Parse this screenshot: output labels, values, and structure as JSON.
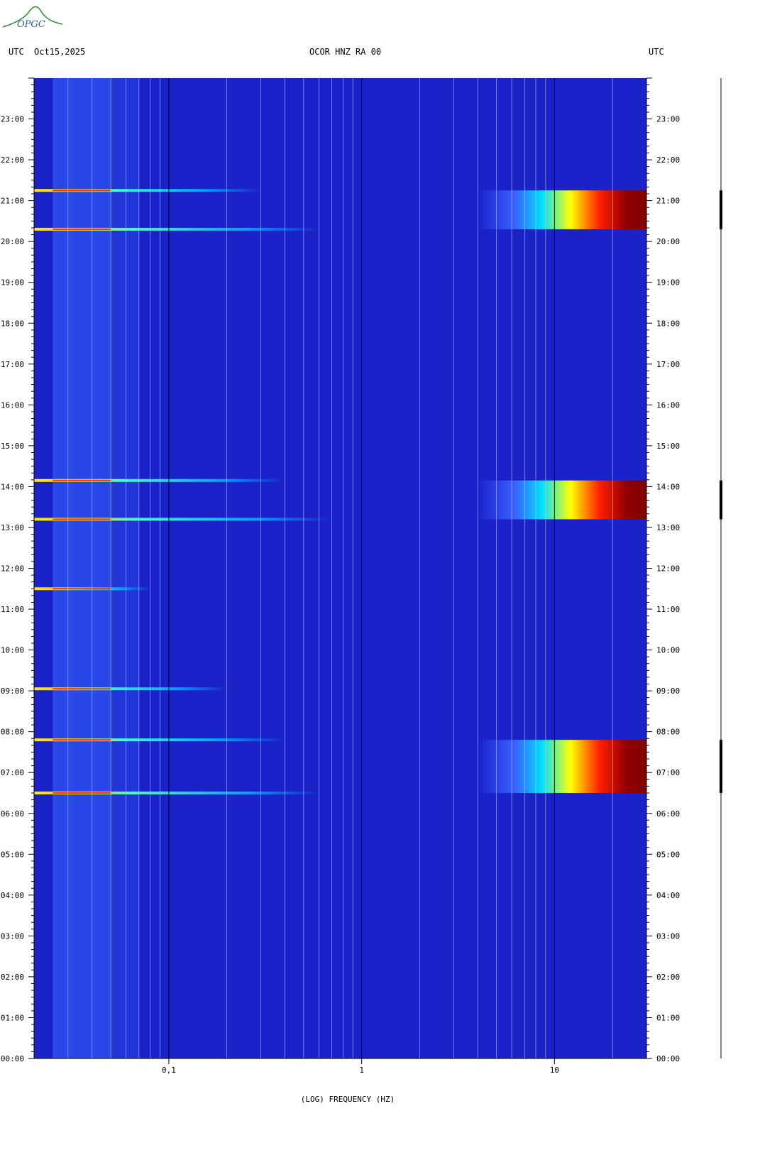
{
  "header": {
    "left_utc": "UTC",
    "date": "Oct15,2025",
    "station": "OCOR HNZ RA 00",
    "right_utc": "UTC"
  },
  "logo": {
    "text": "OPGC",
    "color": "#2a8a3a"
  },
  "chart_data": {
    "type": "heatmap",
    "title": "OCOR HNZ RA 00",
    "xlabel": "(LOG) FREQUENCY (HZ)",
    "ylabel": "",
    "x_scale": "log",
    "xlim": [
      0.02,
      30
    ],
    "x_tick_labels": [
      {
        "value": 0.1,
        "label": "0,1"
      },
      {
        "value": 1,
        "label": "1"
      },
      {
        "value": 10,
        "label": "10"
      }
    ],
    "x_gridlines": [
      0.03,
      0.04,
      0.05,
      0.06,
      0.07,
      0.08,
      0.09,
      0.1,
      0.2,
      0.3,
      0.4,
      0.5,
      0.6,
      0.7,
      0.8,
      0.9,
      1,
      2,
      3,
      4,
      5,
      6,
      7,
      8,
      9,
      10,
      20,
      30
    ],
    "ylim_hours": [
      0,
      24
    ],
    "y_tick_labels": [
      "00:00",
      "01:00",
      "02:00",
      "03:00",
      "04:00",
      "05:00",
      "06:00",
      "07:00",
      "08:00",
      "09:00",
      "10:00",
      "11:00",
      "12:00",
      "13:00",
      "14:00",
      "15:00",
      "16:00",
      "17:00",
      "18:00",
      "19:00",
      "20:00",
      "21:00",
      "22:00",
      "23:00"
    ],
    "colormap": [
      "#000080",
      "#0000ff",
      "#00ffff",
      "#ffff00",
      "#ff0000",
      "#800000"
    ],
    "background_color": "#1a22c8",
    "strong_blocks": [
      {
        "start_hour": 20.3,
        "end_hour": 21.25,
        "f_min": 4
      },
      {
        "start_hour": 13.2,
        "end_hour": 14.15,
        "f_min": 4
      },
      {
        "start_hour": 6.5,
        "end_hour": 7.8,
        "f_min": 4
      }
    ],
    "horizontal_events": [
      {
        "hour": 21.25,
        "f_max": 0.3
      },
      {
        "hour": 20.3,
        "f_max": 0.6
      },
      {
        "hour": 14.15,
        "f_max": 0.4
      },
      {
        "hour": 13.2,
        "f_max": 0.7
      },
      {
        "hour": 11.5,
        "f_max": 0.08
      },
      {
        "hour": 9.05,
        "f_max": 0.2
      },
      {
        "hour": 7.8,
        "f_max": 0.4
      },
      {
        "hour": 6.5,
        "f_max": 0.6
      }
    ]
  }
}
